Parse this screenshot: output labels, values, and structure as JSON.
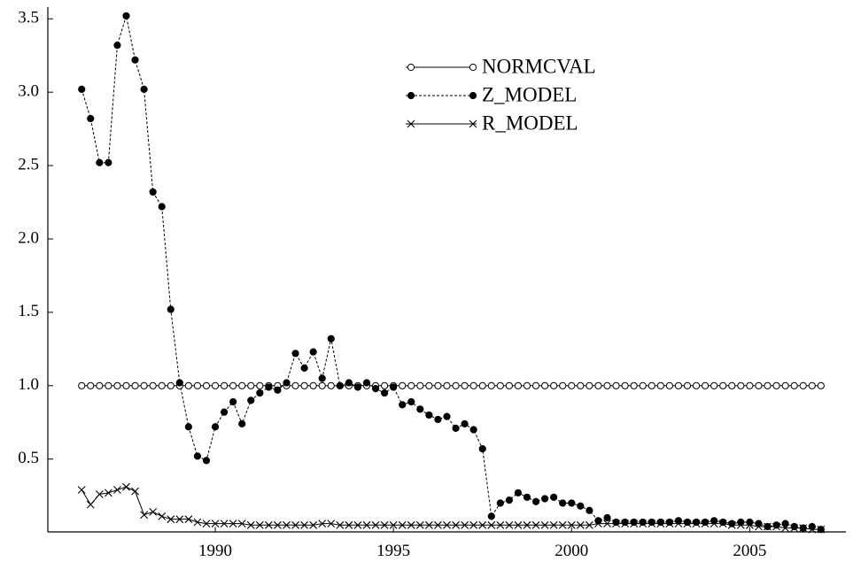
{
  "chart_data": {
    "type": "line",
    "x": [
      1986.25,
      1986.5,
      1986.75,
      1987,
      1987.25,
      1987.5,
      1987.75,
      1988,
      1988.25,
      1988.5,
      1988.75,
      1989,
      1989.25,
      1989.5,
      1989.75,
      1990,
      1990.25,
      1990.5,
      1990.75,
      1991,
      1991.25,
      1991.5,
      1991.75,
      1992,
      1992.25,
      1992.5,
      1992.75,
      1993,
      1993.25,
      1993.5,
      1993.75,
      1994,
      1994.25,
      1994.5,
      1994.75,
      1995,
      1995.25,
      1995.5,
      1995.75,
      1996,
      1996.25,
      1996.5,
      1996.75,
      1997,
      1997.25,
      1997.5,
      1997.75,
      1998,
      1998.25,
      1998.5,
      1998.75,
      1999,
      1999.25,
      1999.5,
      1999.75,
      2000,
      2000.25,
      2000.5,
      2000.75,
      2001,
      2001.25,
      2001.5,
      2001.75,
      2002,
      2002.25,
      2002.5,
      2002.75,
      2003,
      2003.25,
      2003.5,
      2003.75,
      2004,
      2004.25,
      2004.5,
      2004.75,
      2005,
      2005.25,
      2005.5,
      2005.75,
      2006,
      2006.25,
      2006.5,
      2006.75,
      2007
    ],
    "series": [
      {
        "name": "NORMCVAL",
        "color": "#000000",
        "marker": "open-circle",
        "dash": "solid",
        "values": [
          1,
          1,
          1,
          1,
          1,
          1,
          1,
          1,
          1,
          1,
          1,
          1,
          1,
          1,
          1,
          1,
          1,
          1,
          1,
          1,
          1,
          1,
          1,
          1,
          1,
          1,
          1,
          1,
          1,
          1,
          1,
          1,
          1,
          1,
          1,
          1,
          1,
          1,
          1,
          1,
          1,
          1,
          1,
          1,
          1,
          1,
          1,
          1,
          1,
          1,
          1,
          1,
          1,
          1,
          1,
          1,
          1,
          1,
          1,
          1,
          1,
          1,
          1,
          1,
          1,
          1,
          1,
          1,
          1,
          1,
          1,
          1,
          1,
          1,
          1,
          1,
          1,
          1,
          1,
          1,
          1,
          1,
          1,
          1
        ]
      },
      {
        "name": "Z_MODEL",
        "color": "#000000",
        "marker": "filled-circle",
        "dash": "dashed",
        "values": [
          3.02,
          2.82,
          2.52,
          2.52,
          3.32,
          3.52,
          3.22,
          3.02,
          2.32,
          2.22,
          1.52,
          1.02,
          0.72,
          0.52,
          0.49,
          0.72,
          0.82,
          0.89,
          0.74,
          0.9,
          0.95,
          0.99,
          0.97,
          1.02,
          1.22,
          1.12,
          1.23,
          1.05,
          1.32,
          1.0,
          1.02,
          0.99,
          1.02,
          0.98,
          0.95,
          0.99,
          0.87,
          0.89,
          0.84,
          0.8,
          0.77,
          0.79,
          0.71,
          0.74,
          0.7,
          0.57,
          0.11,
          0.2,
          0.22,
          0.27,
          0.24,
          0.21,
          0.23,
          0.24,
          0.2,
          0.2,
          0.18,
          0.15,
          0.08,
          0.1,
          0.07,
          0.07,
          0.07,
          0.07,
          0.07,
          0.07,
          0.07,
          0.08,
          0.07,
          0.07,
          0.07,
          0.08,
          0.07,
          0.06,
          0.07,
          0.07,
          0.06,
          0.04,
          0.05,
          0.06,
          0.04,
          0.03,
          0.04,
          0.02
        ]
      },
      {
        "name": "R_MODEL",
        "color": "#000000",
        "marker": "cross",
        "dash": "solid",
        "values": [
          0.29,
          0.19,
          0.26,
          0.27,
          0.29,
          0.31,
          0.28,
          0.12,
          0.14,
          0.11,
          0.09,
          0.09,
          0.09,
          0.07,
          0.06,
          0.06,
          0.06,
          0.06,
          0.06,
          0.05,
          0.05,
          0.05,
          0.05,
          0.05,
          0.05,
          0.05,
          0.05,
          0.06,
          0.06,
          0.05,
          0.05,
          0.05,
          0.05,
          0.05,
          0.05,
          0.05,
          0.05,
          0.05,
          0.05,
          0.05,
          0.05,
          0.05,
          0.05,
          0.05,
          0.05,
          0.05,
          0.05,
          0.05,
          0.05,
          0.05,
          0.05,
          0.05,
          0.05,
          0.05,
          0.05,
          0.05,
          0.05,
          0.05,
          0.06,
          0.06,
          0.06,
          0.06,
          0.06,
          0.06,
          0.06,
          0.06,
          0.06,
          0.06,
          0.06,
          0.06,
          0.06,
          0.06,
          0.06,
          0.05,
          0.05,
          0.05,
          0.04,
          0.04,
          0.04,
          0.03,
          0.03,
          0.03,
          0.02,
          0.02
        ]
      }
    ],
    "xlim": [
      1985.3,
      2007.7
    ],
    "xticks": [
      1990,
      1995,
      2000,
      2005
    ],
    "ylim": [
      0,
      3.58
    ],
    "yticks": [
      0.5,
      {
        "value": 1,
        "label": "1.0"
      },
      1.5,
      {
        "value": 2,
        "label": "2.0"
      },
      2.5,
      {
        "value": 3,
        "label": "3.0"
      },
      3.5
    ],
    "legend_position": "upper center"
  }
}
